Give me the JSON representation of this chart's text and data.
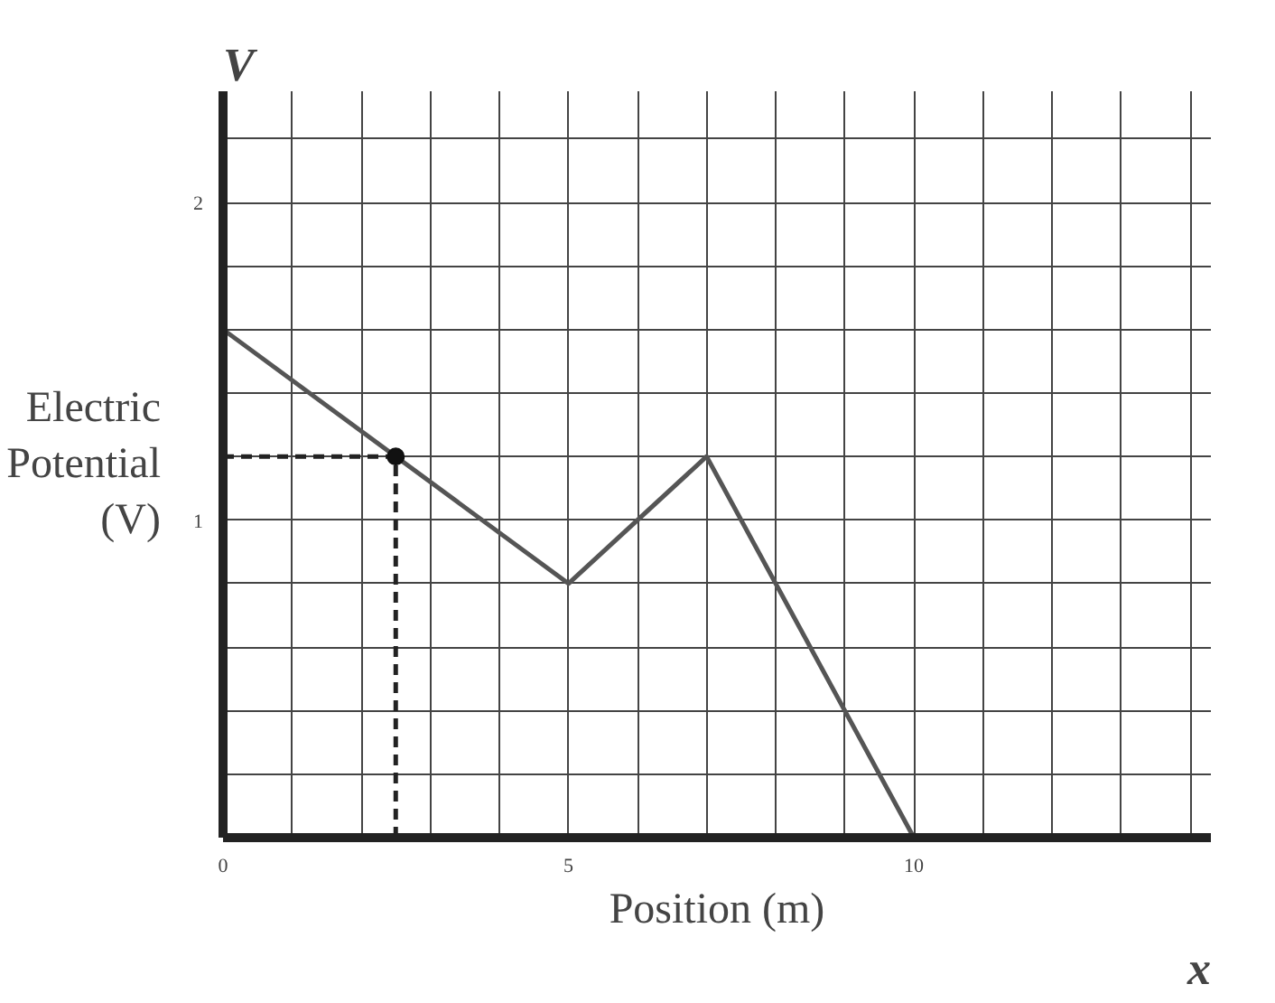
{
  "chart_data": {
    "type": "line",
    "xlabel": "Position (m)",
    "ylabel": "Electric\nPotential\n(V)",
    "annotations": [
      "V",
      "x"
    ],
    "xlim": [
      0,
      14.3
    ],
    "ylim": [
      0,
      2.35
    ],
    "xticks": [
      0,
      {
        "value": 1,
        "label": null
      },
      {
        "value": 2,
        "label": null
      },
      {
        "value": 3,
        "label": null
      },
      {
        "value": 4,
        "label": null
      },
      5,
      {
        "value": 6,
        "label": null
      },
      {
        "value": 7,
        "label": null
      },
      {
        "value": 8,
        "label": null
      },
      {
        "value": 9,
        "label": null
      },
      10,
      {
        "value": 11,
        "label": null
      },
      {
        "value": 12,
        "label": null
      },
      {
        "value": 13,
        "label": null
      },
      {
        "value": 14,
        "label": null
      }
    ],
    "yticks": [
      {
        "value": 0.2,
        "label": null
      },
      {
        "value": 0.4,
        "label": null
      },
      {
        "value": 0.6,
        "label": null
      },
      {
        "value": 0.8,
        "label": null
      },
      1,
      {
        "value": 1.2,
        "label": null
      },
      {
        "value": 1.4,
        "label": null
      },
      {
        "value": 1.6,
        "label": null
      },
      {
        "value": 1.8,
        "label": null
      },
      2,
      {
        "value": 2.2,
        "label": null
      }
    ],
    "grid": true,
    "series": [
      {
        "color": "#555555",
        "x": [
          0,
          5,
          7,
          10,
          14
        ],
        "values": [
          1.6,
          0.8,
          1.2,
          0,
          0
        ],
        "line_style": "solid"
      },
      {
        "color": "#222222",
        "x": [
          0,
          2.5
        ],
        "values": [
          1.2,
          1.2
        ],
        "line_style": "dashed"
      },
      {
        "color": "#222222",
        "x": [
          2.5,
          2.5
        ],
        "values": [
          0,
          1.2
        ],
        "line_style": "dashed"
      },
      {
        "type": "scatter",
        "color": "#111111",
        "x": [
          2.5
        ],
        "values": [
          1.2
        ],
        "marker": "circle"
      }
    ]
  }
}
